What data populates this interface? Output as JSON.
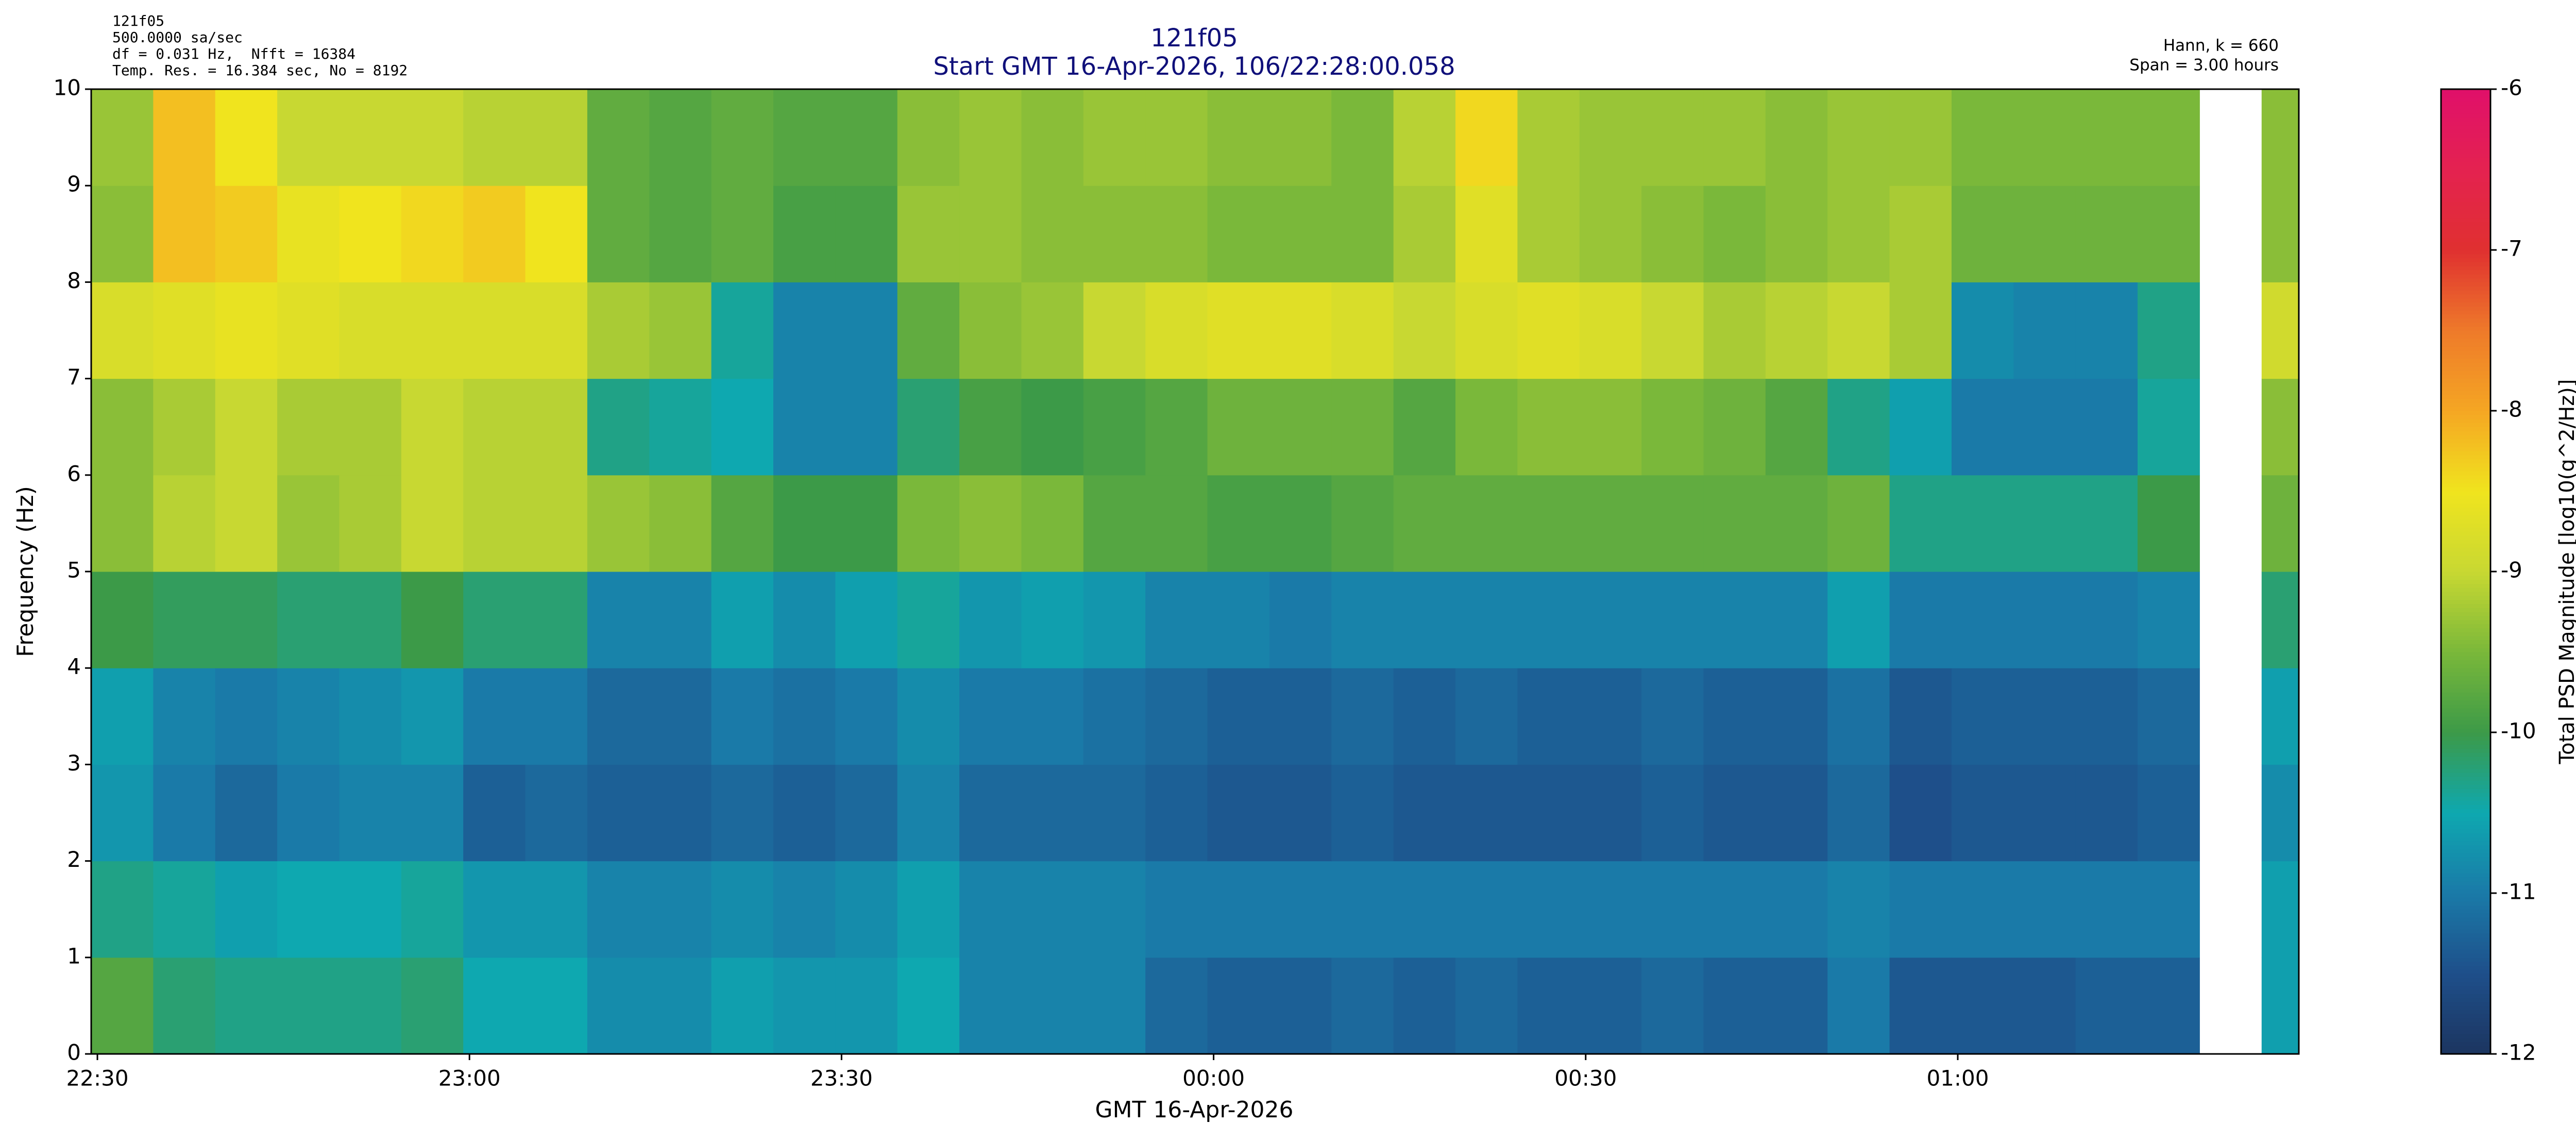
{
  "chart_data": {
    "type": "heatmap",
    "info_lines": [
      "121f05",
      "500.0000 sa/sec",
      "df = 0.031 Hz,  Nfft = 16384",
      "Temp. Res. = 16.384 sec, No = 8192"
    ],
    "title": "121f05",
    "subtitle": "Start GMT 16-Apr-2026, 106/22:28:00.058",
    "window_info": [
      "Hann, k = 660",
      "Span = 3.00 hours"
    ],
    "xlabel": "GMT 16-Apr-2026",
    "ylabel": "Frequency (Hz)",
    "colorbar_label": "Total PSD Magnitude [log10(g^2/Hz)]",
    "x": [
      2,
      7,
      12,
      17,
      22,
      27,
      32,
      37,
      42,
      47,
      52,
      57,
      62,
      67,
      72,
      77,
      82,
      87,
      92,
      97,
      102,
      107,
      112,
      117,
      122,
      127,
      132,
      137,
      142,
      147,
      152,
      157,
      162,
      167,
      172,
      177
    ],
    "y": [
      0.5,
      1.5,
      2.5,
      3.5,
      4.5,
      5.5,
      6.5,
      7.5,
      8.5,
      9.5
    ],
    "z": [
      [
        -9.8,
        -10.2,
        -10.3,
        -10.3,
        -10.3,
        -10.2,
        -10.5,
        -10.5,
        -10.8,
        -10.8,
        -10.6,
        -10.7,
        -10.7,
        -10.5,
        -10.9,
        -10.9,
        -10.9,
        -11.2,
        -11.3,
        -11.3,
        -11.2,
        -11.3,
        -11.2,
        -11.3,
        -11.3,
        -11.2,
        -11.3,
        -11.3,
        -11.0,
        -11.4,
        -11.4,
        -11.4,
        -11.3,
        -11.3,
        null,
        -10.6
      ],
      [
        -10.3,
        -10.4,
        -10.6,
        -10.5,
        -10.5,
        -10.4,
        -10.7,
        -10.7,
        -10.9,
        -10.9,
        -10.8,
        -10.9,
        -10.8,
        -10.6,
        -10.9,
        -10.9,
        -10.9,
        -11.0,
        -11.0,
        -11.0,
        -11.0,
        -11.0,
        -11.0,
        -11.0,
        -11.0,
        -11.0,
        -11.0,
        -11.0,
        -10.9,
        -11.0,
        -11.0,
        -11.0,
        -11.0,
        -11.0,
        null,
        -10.6
      ],
      [
        -10.7,
        -11.0,
        -11.2,
        -11.0,
        -10.9,
        -10.9,
        -11.3,
        -11.2,
        -11.3,
        -11.3,
        -11.2,
        -11.3,
        -11.2,
        -10.9,
        -11.2,
        -11.2,
        -11.2,
        -11.3,
        -11.4,
        -11.4,
        -11.3,
        -11.4,
        -11.4,
        -11.4,
        -11.4,
        -11.3,
        -11.4,
        -11.4,
        -11.2,
        -11.5,
        -11.4,
        -11.4,
        -11.4,
        -11.3,
        null,
        -10.8
      ],
      [
        -10.6,
        -10.9,
        -11.0,
        -10.9,
        -10.8,
        -10.7,
        -11.0,
        -11.0,
        -11.2,
        -11.2,
        -11.0,
        -11.1,
        -11.0,
        -10.8,
        -11.0,
        -11.0,
        -11.1,
        -11.2,
        -11.3,
        -11.3,
        -11.2,
        -11.3,
        -11.2,
        -11.3,
        -11.3,
        -11.2,
        -11.3,
        -11.3,
        -11.1,
        -11.4,
        -11.3,
        -11.3,
        -11.3,
        -11.2,
        null,
        -10.6
      ],
      [
        -10.0,
        -10.1,
        -10.1,
        -10.2,
        -10.2,
        -10.0,
        -10.2,
        -10.2,
        -10.9,
        -10.9,
        -10.6,
        -10.8,
        -10.6,
        -10.4,
        -10.7,
        -10.6,
        -10.7,
        -10.9,
        -10.9,
        -11.0,
        -10.9,
        -10.9,
        -10.9,
        -10.9,
        -10.9,
        -10.9,
        -10.9,
        -10.9,
        -10.6,
        -11.0,
        -11.0,
        -11.0,
        -11.0,
        -10.9,
        null,
        -10.2
      ],
      [
        -9.4,
        -9.1,
        -9.0,
        -9.3,
        -9.2,
        -9.0,
        -9.1,
        -9.1,
        -9.3,
        -9.4,
        -9.8,
        -10.0,
        -10.0,
        -9.5,
        -9.4,
        -9.5,
        -9.8,
        -9.8,
        -9.9,
        -9.9,
        -9.8,
        -9.7,
        -9.7,
        -9.7,
        -9.7,
        -9.7,
        -9.7,
        -9.7,
        -9.6,
        -10.3,
        -10.3,
        -10.3,
        -10.3,
        -10.0,
        null,
        -9.6
      ],
      [
        -9.4,
        -9.2,
        -9.0,
        -9.2,
        -9.2,
        -9.0,
        -9.1,
        -9.1,
        -10.3,
        -10.4,
        -10.5,
        -10.9,
        -10.9,
        -10.2,
        -9.9,
        -10.0,
        -9.9,
        -9.8,
        -9.6,
        -9.6,
        -9.6,
        -9.8,
        -9.5,
        -9.4,
        -9.4,
        -9.5,
        -9.6,
        -9.8,
        -10.3,
        -10.6,
        -11.0,
        -11.0,
        -11.0,
        -10.4,
        null,
        -9.4
      ],
      [
        -8.8,
        -8.7,
        -8.6,
        -8.7,
        -8.8,
        -8.8,
        -8.8,
        -8.8,
        -9.2,
        -9.3,
        -10.4,
        -10.9,
        -10.9,
        -9.7,
        -9.4,
        -9.3,
        -9.0,
        -8.8,
        -8.7,
        -8.7,
        -8.8,
        -9.0,
        -8.8,
        -8.7,
        -8.8,
        -9.0,
        -9.2,
        -9.1,
        -9.0,
        -9.2,
        -10.8,
        -10.9,
        -10.9,
        -10.3,
        null,
        -8.9
      ],
      [
        -9.4,
        -8.2,
        -8.3,
        -8.6,
        -8.5,
        -8.4,
        -8.3,
        -8.5,
        -9.7,
        -9.8,
        -9.7,
        -9.9,
        -9.9,
        -9.3,
        -9.3,
        -9.4,
        -9.4,
        -9.4,
        -9.5,
        -9.5,
        -9.5,
        -9.2,
        -8.7,
        -9.2,
        -9.3,
        -9.4,
        -9.5,
        -9.4,
        -9.3,
        -9.2,
        -9.6,
        -9.6,
        -9.6,
        -9.6,
        null,
        -9.4
      ],
      [
        -9.3,
        -8.2,
        -8.5,
        -9.0,
        -9.0,
        -9.0,
        -9.1,
        -9.1,
        -9.7,
        -9.8,
        -9.7,
        -9.8,
        -9.8,
        -9.4,
        -9.3,
        -9.4,
        -9.3,
        -9.3,
        -9.4,
        -9.4,
        -9.5,
        -9.1,
        -8.4,
        -9.2,
        -9.3,
        -9.3,
        -9.3,
        -9.4,
        -9.3,
        -9.3,
        -9.5,
        -9.5,
        -9.5,
        -9.5,
        null,
        -9.4
      ]
    ],
    "xlim": [
      -0.5,
      177.5
    ],
    "xticks": [
      {
        "value": 0,
        "label": "22:30"
      },
      {
        "value": 30,
        "label": "23:00"
      },
      {
        "value": 60,
        "label": "23:30"
      },
      {
        "value": 90,
        "label": "00:00"
      },
      {
        "value": 120,
        "label": "00:30"
      },
      {
        "value": 150,
        "label": "01:00"
      }
    ],
    "ylim": [
      0,
      10
    ],
    "yticks": [
      0,
      1,
      2,
      3,
      4,
      5,
      6,
      7,
      8,
      9,
      10
    ],
    "clim": [
      -12,
      -6
    ],
    "cticks": [
      -12,
      -11,
      -10,
      -9,
      -8,
      -7,
      -6
    ],
    "colormap": [
      "#1c3560",
      "#1e4f8a",
      "#1a7aa8",
      "#0ea8b0",
      "#3c9a48",
      "#7ab83a",
      "#c8d832",
      "#f0e41e",
      "#f5a623",
      "#ee7a2a",
      "#e03030",
      "#e42250",
      "#e0106a"
    ]
  }
}
